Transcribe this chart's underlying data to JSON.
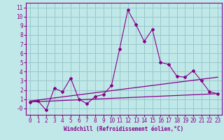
{
  "xlabel": "Windchill (Refroidissement éolien,°C)",
  "bg_color": "#c0e8e8",
  "grid_color": "#98c8cc",
  "line_color": "#880088",
  "spine_color": "#880088",
  "xlim": [
    -0.5,
    23.5
  ],
  "ylim": [
    -0.7,
    11.5
  ],
  "xticks": [
    0,
    1,
    2,
    3,
    4,
    5,
    6,
    7,
    8,
    9,
    10,
    11,
    12,
    13,
    14,
    15,
    16,
    17,
    18,
    19,
    20,
    21,
    22,
    23
  ],
  "yticks": [
    0,
    1,
    2,
    3,
    4,
    5,
    6,
    7,
    8,
    9,
    10,
    11
  ],
  "ytick_labels": [
    "-0",
    "1",
    "2",
    "3",
    "4",
    "5",
    "6",
    "7",
    "8",
    "9",
    "10",
    "11"
  ],
  "line1_x": [
    0,
    1,
    2,
    3,
    4,
    5,
    6,
    7,
    8,
    9,
    10,
    11,
    12,
    13,
    14,
    15,
    16,
    17,
    18,
    19,
    20,
    21,
    22,
    23
  ],
  "line1_y": [
    0.7,
    0.8,
    -0.2,
    2.2,
    1.8,
    3.3,
    1.0,
    0.5,
    1.3,
    1.5,
    2.5,
    6.5,
    10.7,
    9.1,
    7.3,
    8.6,
    5.0,
    4.8,
    3.5,
    3.4,
    4.1,
    3.0,
    1.8,
    1.6
  ],
  "line2_x": [
    0,
    23
  ],
  "line2_y": [
    0.7,
    1.6
  ],
  "line3_x": [
    0,
    23
  ],
  "line3_y": [
    0.8,
    3.4
  ],
  "tick_fontsize": 5.5,
  "xlabel_fontsize": 5.5
}
